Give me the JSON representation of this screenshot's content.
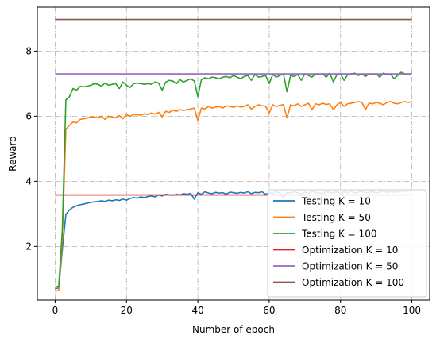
{
  "chart_data": {
    "type": "line",
    "xlabel": "Number of epoch",
    "ylabel": "Reward",
    "xlim": [
      -5,
      105
    ],
    "ylim": [
      0.35,
      9.35
    ],
    "x_ticks": [
      0,
      20,
      40,
      60,
      80,
      100
    ],
    "y_ticks": [
      2,
      4,
      6,
      8
    ],
    "grid": true,
    "legend_position": "lower-right",
    "series": [
      {
        "name": "Testing K = 10",
        "color": "#1f77b4",
        "x": [
          0,
          1,
          2,
          3,
          4,
          5,
          6,
          7,
          8,
          9,
          10,
          11,
          12,
          13,
          14,
          15,
          16,
          17,
          18,
          19,
          20,
          21,
          22,
          23,
          24,
          25,
          26,
          27,
          28,
          29,
          30,
          31,
          32,
          33,
          34,
          35,
          36,
          37,
          38,
          39,
          40,
          41,
          42,
          43,
          44,
          45,
          46,
          47,
          48,
          49,
          50,
          51,
          52,
          53,
          54,
          55,
          56,
          57,
          58,
          59,
          60,
          61,
          62,
          63,
          64,
          65,
          66,
          67,
          68,
          69,
          70,
          71,
          72,
          73,
          74,
          75,
          76,
          77,
          78,
          79,
          80,
          81,
          82,
          83,
          84,
          85,
          86,
          87,
          88,
          89,
          90,
          91,
          92,
          93,
          94,
          95,
          96,
          97,
          98,
          99,
          100
        ],
        "y": [
          0.7,
          0.72,
          1.9,
          2.98,
          3.12,
          3.2,
          3.25,
          3.28,
          3.3,
          3.33,
          3.35,
          3.37,
          3.38,
          3.4,
          3.38,
          3.42,
          3.4,
          3.43,
          3.41,
          3.45,
          3.42,
          3.47,
          3.5,
          3.48,
          3.52,
          3.5,
          3.53,
          3.55,
          3.52,
          3.58,
          3.55,
          3.6,
          3.58,
          3.57,
          3.6,
          3.58,
          3.62,
          3.6,
          3.63,
          3.45,
          3.65,
          3.6,
          3.68,
          3.64,
          3.62,
          3.66,
          3.64,
          3.65,
          3.6,
          3.67,
          3.65,
          3.63,
          3.66,
          3.64,
          3.68,
          3.62,
          3.66,
          3.65,
          3.68,
          3.6,
          3.65,
          3.62,
          3.68,
          3.64,
          3.5,
          3.66,
          3.64,
          3.68,
          3.65,
          3.6,
          3.67,
          3.64,
          3.69,
          3.66,
          3.65,
          3.62,
          3.68,
          3.66,
          3.64,
          3.68,
          3.62,
          3.67,
          3.65,
          3.69,
          3.64,
          3.67,
          3.68,
          3.65,
          3.66,
          3.69,
          3.64,
          3.67,
          3.7,
          3.66,
          3.69,
          3.67,
          3.68,
          3.7,
          3.69,
          3.71,
          3.72
        ]
      },
      {
        "name": "Testing K = 50",
        "color": "#ff7f0e",
        "x": [
          0,
          1,
          2,
          3,
          4,
          5,
          6,
          7,
          8,
          9,
          10,
          11,
          12,
          13,
          14,
          15,
          16,
          17,
          18,
          19,
          20,
          21,
          22,
          23,
          24,
          25,
          26,
          27,
          28,
          29,
          30,
          31,
          32,
          33,
          34,
          35,
          36,
          37,
          38,
          39,
          40,
          41,
          42,
          43,
          44,
          45,
          46,
          47,
          48,
          49,
          50,
          51,
          52,
          53,
          54,
          55,
          56,
          57,
          58,
          59,
          60,
          61,
          62,
          63,
          64,
          65,
          66,
          67,
          68,
          69,
          70,
          71,
          72,
          73,
          74,
          75,
          76,
          77,
          78,
          79,
          80,
          81,
          82,
          83,
          84,
          85,
          86,
          87,
          88,
          89,
          90,
          91,
          92,
          93,
          94,
          95,
          96,
          97,
          98,
          99,
          100
        ],
        "y": [
          0.62,
          0.65,
          2.2,
          5.6,
          5.72,
          5.82,
          5.8,
          5.9,
          5.92,
          5.94,
          5.98,
          5.97,
          5.95,
          6.0,
          5.9,
          6.0,
          5.98,
          5.95,
          6.02,
          5.92,
          6.05,
          6.0,
          6.05,
          6.05,
          6.03,
          6.08,
          6.05,
          6.1,
          6.06,
          6.12,
          5.98,
          6.15,
          6.12,
          6.18,
          6.15,
          6.2,
          6.18,
          6.2,
          6.22,
          6.25,
          5.87,
          6.25,
          6.22,
          6.3,
          6.25,
          6.28,
          6.3,
          6.25,
          6.32,
          6.3,
          6.27,
          6.32,
          6.28,
          6.3,
          6.35,
          6.22,
          6.3,
          6.35,
          6.32,
          6.3,
          6.1,
          6.35,
          6.3,
          6.33,
          6.36,
          5.95,
          6.35,
          6.32,
          6.38,
          6.3,
          6.35,
          6.4,
          6.2,
          6.38,
          6.35,
          6.4,
          6.36,
          6.38,
          6.2,
          6.35,
          6.42,
          6.3,
          6.38,
          6.4,
          6.42,
          6.45,
          6.42,
          6.2,
          6.4,
          6.38,
          6.42,
          6.4,
          6.35,
          6.42,
          6.45,
          6.4,
          6.38,
          6.42,
          6.45,
          6.42,
          6.45
        ]
      },
      {
        "name": "Testing K = 100",
        "color": "#2ca02c",
        "x": [
          0,
          1,
          2,
          3,
          4,
          5,
          6,
          7,
          8,
          9,
          10,
          11,
          12,
          13,
          14,
          15,
          16,
          17,
          18,
          19,
          20,
          21,
          22,
          23,
          24,
          25,
          26,
          27,
          28,
          29,
          30,
          31,
          32,
          33,
          34,
          35,
          36,
          37,
          38,
          39,
          40,
          41,
          42,
          43,
          44,
          45,
          46,
          47,
          48,
          49,
          50,
          51,
          52,
          53,
          54,
          55,
          56,
          57,
          58,
          59,
          60,
          61,
          62,
          63,
          64,
          65,
          66,
          67,
          68,
          69,
          70,
          71,
          72,
          73,
          74,
          75,
          76,
          77,
          78,
          79,
          80,
          81,
          82,
          83,
          84,
          85,
          86,
          87,
          88,
          89,
          90,
          91,
          92,
          93,
          94,
          95,
          96,
          97,
          98,
          99,
          100
        ],
        "y": [
          0.75,
          0.78,
          2.5,
          6.5,
          6.6,
          6.85,
          6.8,
          6.92,
          6.9,
          6.92,
          6.95,
          7.0,
          6.98,
          6.92,
          7.02,
          6.95,
          6.98,
          7.0,
          6.85,
          7.05,
          6.95,
          6.88,
          7.0,
          7.02,
          7.0,
          6.98,
          7.0,
          6.98,
          7.05,
          7.02,
          6.8,
          7.05,
          7.1,
          7.08,
          7.0,
          7.12,
          7.05,
          7.1,
          7.15,
          7.08,
          6.6,
          7.12,
          7.18,
          7.15,
          7.2,
          7.18,
          7.15,
          7.2,
          7.22,
          7.18,
          7.25,
          7.2,
          7.15,
          7.22,
          7.25,
          7.1,
          7.28,
          7.2,
          7.22,
          7.25,
          7.0,
          7.28,
          7.2,
          7.25,
          7.3,
          6.75,
          7.25,
          7.22,
          7.28,
          7.1,
          7.3,
          7.25,
          7.2,
          7.3,
          7.28,
          7.3,
          7.2,
          7.32,
          7.05,
          7.28,
          7.3,
          7.1,
          7.28,
          7.3,
          7.32,
          7.25,
          7.3,
          7.22,
          7.3,
          7.28,
          7.3,
          7.2,
          7.32,
          7.28,
          7.3,
          7.15,
          7.25,
          7.35,
          7.3,
          7.28,
          7.32
        ]
      },
      {
        "name": "Optimization K = 10",
        "color": "#d62728",
        "x": [
          0,
          100
        ],
        "y": [
          3.58,
          3.58
        ]
      },
      {
        "name": "Optimization K = 50",
        "color": "#9467bd",
        "x": [
          0,
          100
        ],
        "y": [
          7.3,
          7.3
        ]
      },
      {
        "name": "Optimization K = 100",
        "color": "#8c564b",
        "x": [
          0,
          100
        ],
        "y": [
          8.97,
          8.97
        ]
      }
    ]
  }
}
